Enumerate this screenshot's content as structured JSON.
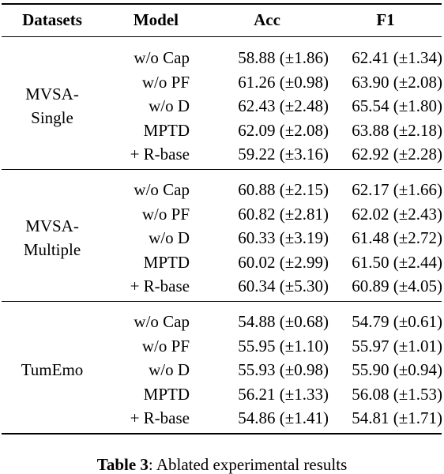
{
  "table": {
    "headers": [
      "Datasets",
      "Model",
      "Acc",
      "F1"
    ],
    "groups": [
      {
        "dataset": [
          "MVSA-",
          "Single"
        ],
        "rows": [
          {
            "model": "w/o Cap",
            "acc": "58.88 (±1.86)",
            "f1": "62.41 (±1.34)"
          },
          {
            "model": "w/o PF",
            "acc": "61.26 (±0.98)",
            "f1": "63.90 (±2.08)"
          },
          {
            "model": "w/o D",
            "acc": "62.43 (±2.48)",
            "f1": "65.54 (±1.80)"
          },
          {
            "model": "MPTD",
            "acc": "62.09 (±2.08)",
            "f1": "63.88 (±2.18)"
          },
          {
            "model": "+ R-base",
            "acc": "59.22 (±3.16)",
            "f1": "62.92 (±2.28)"
          }
        ]
      },
      {
        "dataset": [
          "MVSA-",
          "Multiple"
        ],
        "rows": [
          {
            "model": "w/o Cap",
            "acc": "60.88 (±2.15)",
            "f1": "62.17 (±1.66)"
          },
          {
            "model": "w/o PF",
            "acc": "60.82 (±2.81)",
            "f1": "62.02 (±2.43)"
          },
          {
            "model": "w/o D",
            "acc": "60.33 (±3.19)",
            "f1": "61.48 (±2.72)"
          },
          {
            "model": "MPTD",
            "acc": "60.02 (±2.99)",
            "f1": "61.50 (±2.44)"
          },
          {
            "model": "+ R-base",
            "acc": "60.34 (±5.30)",
            "f1": "60.89 (±4.05)"
          }
        ]
      },
      {
        "dataset": [
          "TumEmo"
        ],
        "rows": [
          {
            "model": "w/o Cap",
            "acc": "54.88 (±0.68)",
            "f1": "54.79 (±0.61)"
          },
          {
            "model": "w/o PF",
            "acc": "55.95 (±1.10)",
            "f1": "55.97 (±1.01)"
          },
          {
            "model": "w/o D",
            "acc": "55.93 (±0.98)",
            "f1": "55.90 (±0.94)"
          },
          {
            "model": "MPTD",
            "acc": "56.21 (±1.33)",
            "f1": "56.08 (±1.53)"
          },
          {
            "model": "+ R-base",
            "acc": "54.86 (±1.41)",
            "f1": "54.81 (±1.71)"
          }
        ]
      }
    ]
  },
  "caption": {
    "label": "Table 3",
    "text": ": Ablated experimental results"
  }
}
